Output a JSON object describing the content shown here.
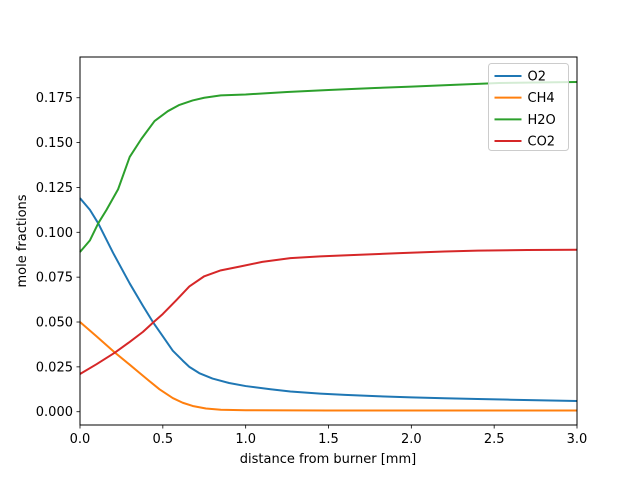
{
  "figure": {
    "background": "#ffffff",
    "plot_border_color": "#000000"
  },
  "chart_data": {
    "type": "line",
    "title": "",
    "xlabel": "distance from burner [mm]",
    "ylabel": "mole fractions",
    "xlim": [
      0.0,
      3.0
    ],
    "ylim": [
      -0.0074,
      0.1977
    ],
    "grid": false,
    "xticks": [
      {
        "value": 0.0,
        "label": "0.0"
      },
      {
        "value": 0.5,
        "label": "0.5"
      },
      {
        "value": 1.0,
        "label": "1.0"
      },
      {
        "value": 1.5,
        "label": "1.5"
      },
      {
        "value": 2.0,
        "label": "2.0"
      },
      {
        "value": 2.5,
        "label": "2.5"
      },
      {
        "value": 3.0,
        "label": "3.0"
      }
    ],
    "yticks": [
      {
        "value": 0.0,
        "label": "0.000"
      },
      {
        "value": 0.025,
        "label": "0.025"
      },
      {
        "value": 0.05,
        "label": "0.050"
      },
      {
        "value": 0.075,
        "label": "0.075"
      },
      {
        "value": 0.1,
        "label": "0.100"
      },
      {
        "value": 0.125,
        "label": "0.125"
      },
      {
        "value": 0.15,
        "label": "0.150"
      },
      {
        "value": 0.175,
        "label": "0.175"
      }
    ],
    "legend": {
      "position": "upper right",
      "border_color": "#cccccc",
      "background": "rgba(255,255,255,0.8)",
      "entries": [
        "O2",
        "CH4",
        "H2O",
        "CO2"
      ]
    },
    "series": [
      {
        "name": "O2",
        "color": "#1f77b4",
        "points": [
          [
            0.0,
            0.119
          ],
          [
            0.06,
            0.1125
          ],
          [
            0.11,
            0.105
          ],
          [
            0.2,
            0.0885
          ],
          [
            0.3,
            0.0715
          ],
          [
            0.38,
            0.059
          ],
          [
            0.44,
            0.05
          ],
          [
            0.5,
            0.042
          ],
          [
            0.56,
            0.034
          ],
          [
            0.62,
            0.0285
          ],
          [
            0.66,
            0.025
          ],
          [
            0.72,
            0.0215
          ],
          [
            0.8,
            0.0185
          ],
          [
            0.9,
            0.016
          ],
          [
            1.0,
            0.0143
          ],
          [
            1.15,
            0.0125
          ],
          [
            1.27,
            0.0113
          ],
          [
            1.45,
            0.0101
          ],
          [
            1.6,
            0.0094
          ],
          [
            1.8,
            0.0086
          ],
          [
            2.0,
            0.008
          ],
          [
            2.2,
            0.0075
          ],
          [
            2.4,
            0.0071
          ],
          [
            2.6,
            0.0067
          ],
          [
            2.8,
            0.0063
          ],
          [
            3.0,
            0.006
          ]
        ]
      },
      {
        "name": "CH4",
        "color": "#ff7f0e",
        "points": [
          [
            0.0,
            0.05
          ],
          [
            0.1,
            0.042
          ],
          [
            0.21,
            0.033
          ],
          [
            0.3,
            0.0262
          ],
          [
            0.36,
            0.0216
          ],
          [
            0.42,
            0.017
          ],
          [
            0.48,
            0.0125
          ],
          [
            0.56,
            0.0076
          ],
          [
            0.62,
            0.005
          ],
          [
            0.68,
            0.0032
          ],
          [
            0.76,
            0.0018
          ],
          [
            0.85,
            0.0011
          ],
          [
            1.0,
            0.0008
          ],
          [
            1.5,
            0.0007
          ],
          [
            2.0,
            0.0007
          ],
          [
            2.5,
            0.0007
          ],
          [
            3.0,
            0.0007
          ]
        ]
      },
      {
        "name": "H2O",
        "color": "#2ca02c",
        "points": [
          [
            0.0,
            0.089
          ],
          [
            0.06,
            0.0955
          ],
          [
            0.11,
            0.105
          ],
          [
            0.16,
            0.1125
          ],
          [
            0.23,
            0.124
          ],
          [
            0.3,
            0.142
          ],
          [
            0.37,
            0.152
          ],
          [
            0.45,
            0.162
          ],
          [
            0.53,
            0.1675
          ],
          [
            0.6,
            0.171
          ],
          [
            0.68,
            0.1735
          ],
          [
            0.75,
            0.175
          ],
          [
            0.85,
            0.1763
          ],
          [
            1.0,
            0.1768
          ],
          [
            1.25,
            0.1782
          ],
          [
            1.5,
            0.1793
          ],
          [
            1.78,
            0.1804
          ],
          [
            2.0,
            0.1812
          ],
          [
            2.27,
            0.1822
          ],
          [
            2.53,
            0.1832
          ],
          [
            2.75,
            0.1835
          ],
          [
            3.0,
            0.1838
          ]
        ]
      },
      {
        "name": "CO2",
        "color": "#d62728",
        "points": [
          [
            0.0,
            0.021
          ],
          [
            0.1,
            0.0265
          ],
          [
            0.21,
            0.0329
          ],
          [
            0.3,
            0.0389
          ],
          [
            0.38,
            0.0445
          ],
          [
            0.44,
            0.0496
          ],
          [
            0.5,
            0.0545
          ],
          [
            0.58,
            0.062
          ],
          [
            0.66,
            0.0698
          ],
          [
            0.75,
            0.0755
          ],
          [
            0.85,
            0.0788
          ],
          [
            0.97,
            0.081
          ],
          [
            1.1,
            0.0835
          ],
          [
            1.27,
            0.0856
          ],
          [
            1.45,
            0.0866
          ],
          [
            1.69,
            0.0875
          ],
          [
            1.93,
            0.0884
          ],
          [
            2.2,
            0.0893
          ],
          [
            2.4,
            0.0898
          ],
          [
            2.7,
            0.0901
          ],
          [
            3.0,
            0.0903
          ]
        ]
      }
    ]
  }
}
